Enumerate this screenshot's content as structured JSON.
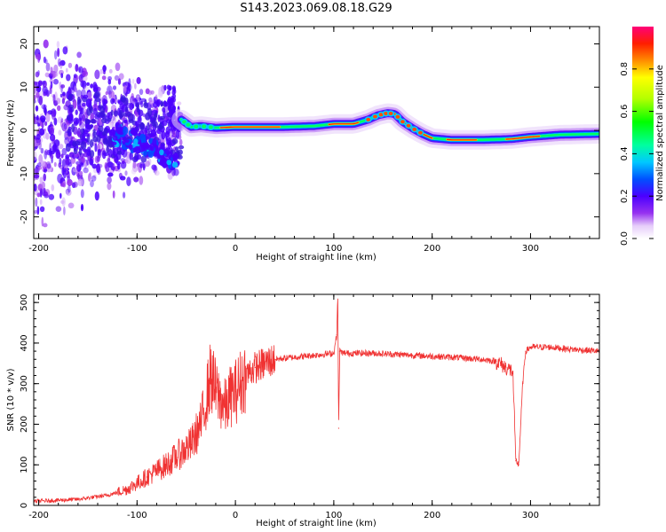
{
  "title": "S143.2023.069.08.18.G29",
  "chart_data": [
    {
      "type": "heatmap",
      "xlabel": "Height of straight line (km)",
      "ylabel": "Frequency (Hz)",
      "xlim": [
        -205,
        370
      ],
      "ylim": [
        -25,
        24
      ],
      "xticks": [
        -200,
        -100,
        0,
        100,
        200,
        300
      ],
      "yticks": [
        -20,
        -10,
        0,
        10,
        20
      ],
      "colorbar": {
        "label": "Normalized spectral amplitude",
        "ticks": [
          "0.0",
          "0.2",
          "0.4",
          "0.6",
          "0.8"
        ],
        "range": [
          0,
          1
        ]
      },
      "ridge": {
        "x": [
          -55,
          -45,
          -35,
          -20,
          0,
          50,
          80,
          100,
          120,
          135,
          145,
          155,
          162,
          170,
          180,
          190,
          200,
          220,
          250,
          280,
          300,
          330,
          370
        ],
        "y": [
          2.5,
          0.8,
          1.0,
          0.6,
          0.8,
          0.8,
          1.0,
          1.5,
          1.5,
          2.5,
          3.5,
          4.0,
          3.8,
          2.0,
          0.5,
          -0.8,
          -1.8,
          -2.2,
          -2.2,
          -2.0,
          -1.5,
          -1.0,
          -0.8
        ]
      },
      "scatter_tail": {
        "x": [
          -125,
          -110,
          -100,
          -90,
          -80,
          -70,
          -62
        ],
        "y": [
          -1.0,
          -2.0,
          -2.5,
          -3.5,
          -4.5,
          -6.5,
          -7.5
        ]
      }
    },
    {
      "type": "line",
      "xlabel": "Height of straight line (km)",
      "ylabel": "SNR (10 * v/v)",
      "xlim": [
        -205,
        370
      ],
      "ylim": [
        0,
        520
      ],
      "xticks": [
        -200,
        -100,
        0,
        100,
        200,
        300
      ],
      "yticks": [
        0,
        100,
        200,
        300,
        400,
        500
      ],
      "series": [
        {
          "color": "#f03232",
          "x": [
            -205,
            -160,
            -130,
            -110,
            -90,
            -70,
            -55,
            -45,
            -35,
            -25,
            -20,
            -15,
            -10,
            -5,
            0,
            10,
            20,
            30,
            40,
            60,
            80,
            100,
            103,
            104,
            105,
            106,
            110,
            140,
            180,
            220,
            250,
            265,
            275,
            282,
            285,
            288,
            292,
            295,
            300,
            320,
            340,
            370
          ],
          "y": [
            10,
            15,
            25,
            40,
            70,
            100,
            130,
            150,
            200,
            320,
            280,
            260,
            240,
            270,
            280,
            320,
            340,
            350,
            360,
            365,
            370,
            375,
            420,
            520,
            190,
            380,
            375,
            375,
            370,
            365,
            360,
            355,
            340,
            330,
            110,
            100,
            300,
            380,
            390,
            390,
            385,
            380
          ]
        }
      ]
    }
  ]
}
